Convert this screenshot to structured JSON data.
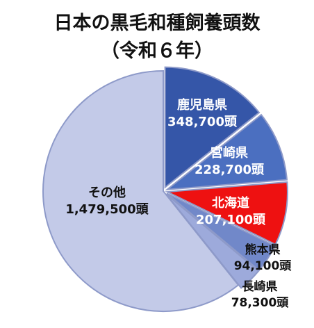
{
  "title": {
    "line1": "日本の黒毛和種飼養頭数",
    "line2": "（令和６年）"
  },
  "chart_data": {
    "type": "pie",
    "start_angle_deg": 0,
    "direction": "clockwise",
    "slices": [
      {
        "name": "鹿児島県",
        "value": 348700,
        "value_label": "348,700頭",
        "color": "#3556A8",
        "label_color": "#ffffff"
      },
      {
        "name": "宮崎県",
        "value": 228700,
        "value_label": "228,700頭",
        "color": "#4B6FC0",
        "label_color": "#ffffff"
      },
      {
        "name": "北海道",
        "value": 207100,
        "value_label": "207,100頭",
        "color": "#EE1111",
        "label_color": "#ffffff"
      },
      {
        "name": "熊本県",
        "value": 94100,
        "value_label": "94,100頭",
        "color": "#7188C9",
        "label_color": "#111111"
      },
      {
        "name": "長崎県",
        "value": 78300,
        "value_label": "78,300頭",
        "color": "#9DAADB",
        "label_color": "#111111"
      },
      {
        "name": "その他",
        "value": 1479500,
        "value_label": "1,479,500頭",
        "color": "#C3CAE8",
        "label_color": "#111111"
      }
    ]
  }
}
